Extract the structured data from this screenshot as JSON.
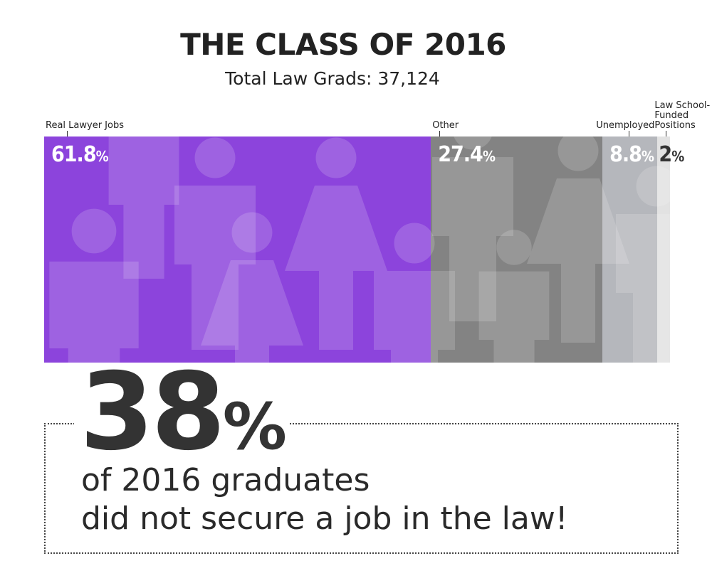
{
  "chart_data": {
    "type": "stacked-bar-100",
    "title": "THE CLASS OF 2016",
    "subtitle": "Total Law Grads: 37,124",
    "xlim": [
      0,
      100
    ],
    "series": [
      {
        "name": "Real Lawyer Jobs",
        "color": "#8c44dc",
        "label_color": "#ffffff",
        "values": [
          61.8
        ],
        "value_labels": [
          "61.8%"
        ]
      },
      {
        "name": "Other",
        "color": "#838383",
        "label_color": "#ffffff",
        "values": [
          27.4
        ],
        "value_labels": [
          "27.4%"
        ]
      },
      {
        "name": "Unemployed",
        "color": "#b5b7bc",
        "label_color": "#ffffff",
        "values": [
          8.8
        ],
        "value_labels": [
          "8.8%"
        ]
      },
      {
        "name": "Law School-Funded Positions",
        "color": "#e2e2e2",
        "label_color": "#333333",
        "values": [
          2
        ],
        "value_labels": [
          "2%"
        ]
      }
    ],
    "callout": {
      "figure": "38%",
      "lines": [
        "of 2016 graduates",
        "did not secure a job in the law!"
      ]
    }
  }
}
